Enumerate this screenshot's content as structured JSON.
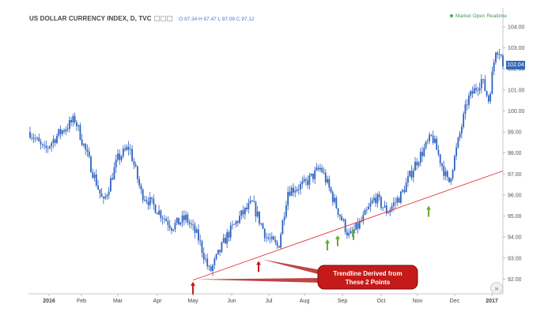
{
  "header": {
    "symbol": "US DOLLAR CURRENCY INDEX, D, TVC",
    "ohlc": "O 97.34  H 97.47  L 97.09  C 97.12"
  },
  "status": {
    "label": "Market Open Realtime",
    "color": "#4caf50"
  },
  "price_tag": {
    "value": "102.04",
    "color": "#3568b8"
  },
  "annotation": {
    "text_line1": "Trendline Derived from",
    "text_line2": "These 2 Points",
    "box_color": "#c41a1a",
    "trendline_color": "#e53935"
  },
  "colors": {
    "candle": "#2e62c2",
    "support_arrow": "#6aab2e",
    "pivot_arrow": "#c41a1a"
  },
  "icons": {
    "scroll": "double-chevron-right-icon"
  },
  "chart_data": {
    "type": "candlestick",
    "title": "US DOLLAR CURRENCY INDEX, D, TVC",
    "x_ticks": [
      "2016",
      "Feb",
      "Mar",
      "Apr",
      "May",
      "Jun",
      "Jul",
      "Aug",
      "Sep",
      "Oct",
      "Nov",
      "Dec",
      "2017"
    ],
    "y_ticks": [
      "92.00",
      "93.00",
      "94.00",
      "95.00",
      "96.00",
      "97.00",
      "98.00",
      "99.00",
      "100.00",
      "101.00",
      "102.00",
      "103.00",
      "104.00"
    ],
    "ylim": [
      91.3,
      104.3
    ],
    "last_price": 102.04,
    "anchors": [
      {
        "t": 0.0,
        "p": 99.0
      },
      {
        "t": 0.03,
        "p": 98.1
      },
      {
        "t": 0.06,
        "p": 98.9
      },
      {
        "t": 0.095,
        "p": 99.6
      },
      {
        "t": 0.125,
        "p": 97.6
      },
      {
        "t": 0.155,
        "p": 95.6
      },
      {
        "t": 0.185,
        "p": 97.7
      },
      {
        "t": 0.21,
        "p": 98.3
      },
      {
        "t": 0.235,
        "p": 96.1
      },
      {
        "t": 0.265,
        "p": 95.4
      },
      {
        "t": 0.3,
        "p": 94.5
      },
      {
        "t": 0.33,
        "p": 94.9
      },
      {
        "t": 0.355,
        "p": 94.0
      },
      {
        "t": 0.38,
        "p": 92.3
      },
      {
        "t": 0.415,
        "p": 94.0
      },
      {
        "t": 0.445,
        "p": 95.0
      },
      {
        "t": 0.47,
        "p": 95.6
      },
      {
        "t": 0.5,
        "p": 94.0
      },
      {
        "t": 0.525,
        "p": 93.5
      },
      {
        "t": 0.545,
        "p": 96.2
      },
      {
        "t": 0.58,
        "p": 96.5
      },
      {
        "t": 0.615,
        "p": 97.3
      },
      {
        "t": 0.645,
        "p": 95.6
      },
      {
        "t": 0.675,
        "p": 94.0
      },
      {
        "t": 0.7,
        "p": 94.7
      },
      {
        "t": 0.73,
        "p": 95.9
      },
      {
        "t": 0.755,
        "p": 95.2
      },
      {
        "t": 0.785,
        "p": 96.0
      },
      {
        "t": 0.815,
        "p": 97.5
      },
      {
        "t": 0.85,
        "p": 98.8
      },
      {
        "t": 0.87,
        "p": 97.5
      },
      {
        "t": 0.885,
        "p": 96.5
      },
      {
        "t": 0.9,
        "p": 98.0
      },
      {
        "t": 0.925,
        "p": 100.5
      },
      {
        "t": 0.955,
        "p": 101.5
      },
      {
        "t": 0.97,
        "p": 100.5
      },
      {
        "t": 0.985,
        "p": 103.0
      },
      {
        "t": 0.995,
        "p": 102.8
      },
      {
        "t": 1.0,
        "p": 102.0
      }
    ],
    "trendline": [
      {
        "date": "May",
        "price": 91.95
      },
      {
        "date": "Jul",
        "price": 93.05
      }
    ],
    "support_points": [
      {
        "date": "Aug",
        "price": 94.0
      },
      {
        "date": "Aug",
        "price": 94.2
      },
      {
        "date": "Sep",
        "price": 94.5
      },
      {
        "date": "Nov",
        "price": 95.6
      }
    ]
  }
}
